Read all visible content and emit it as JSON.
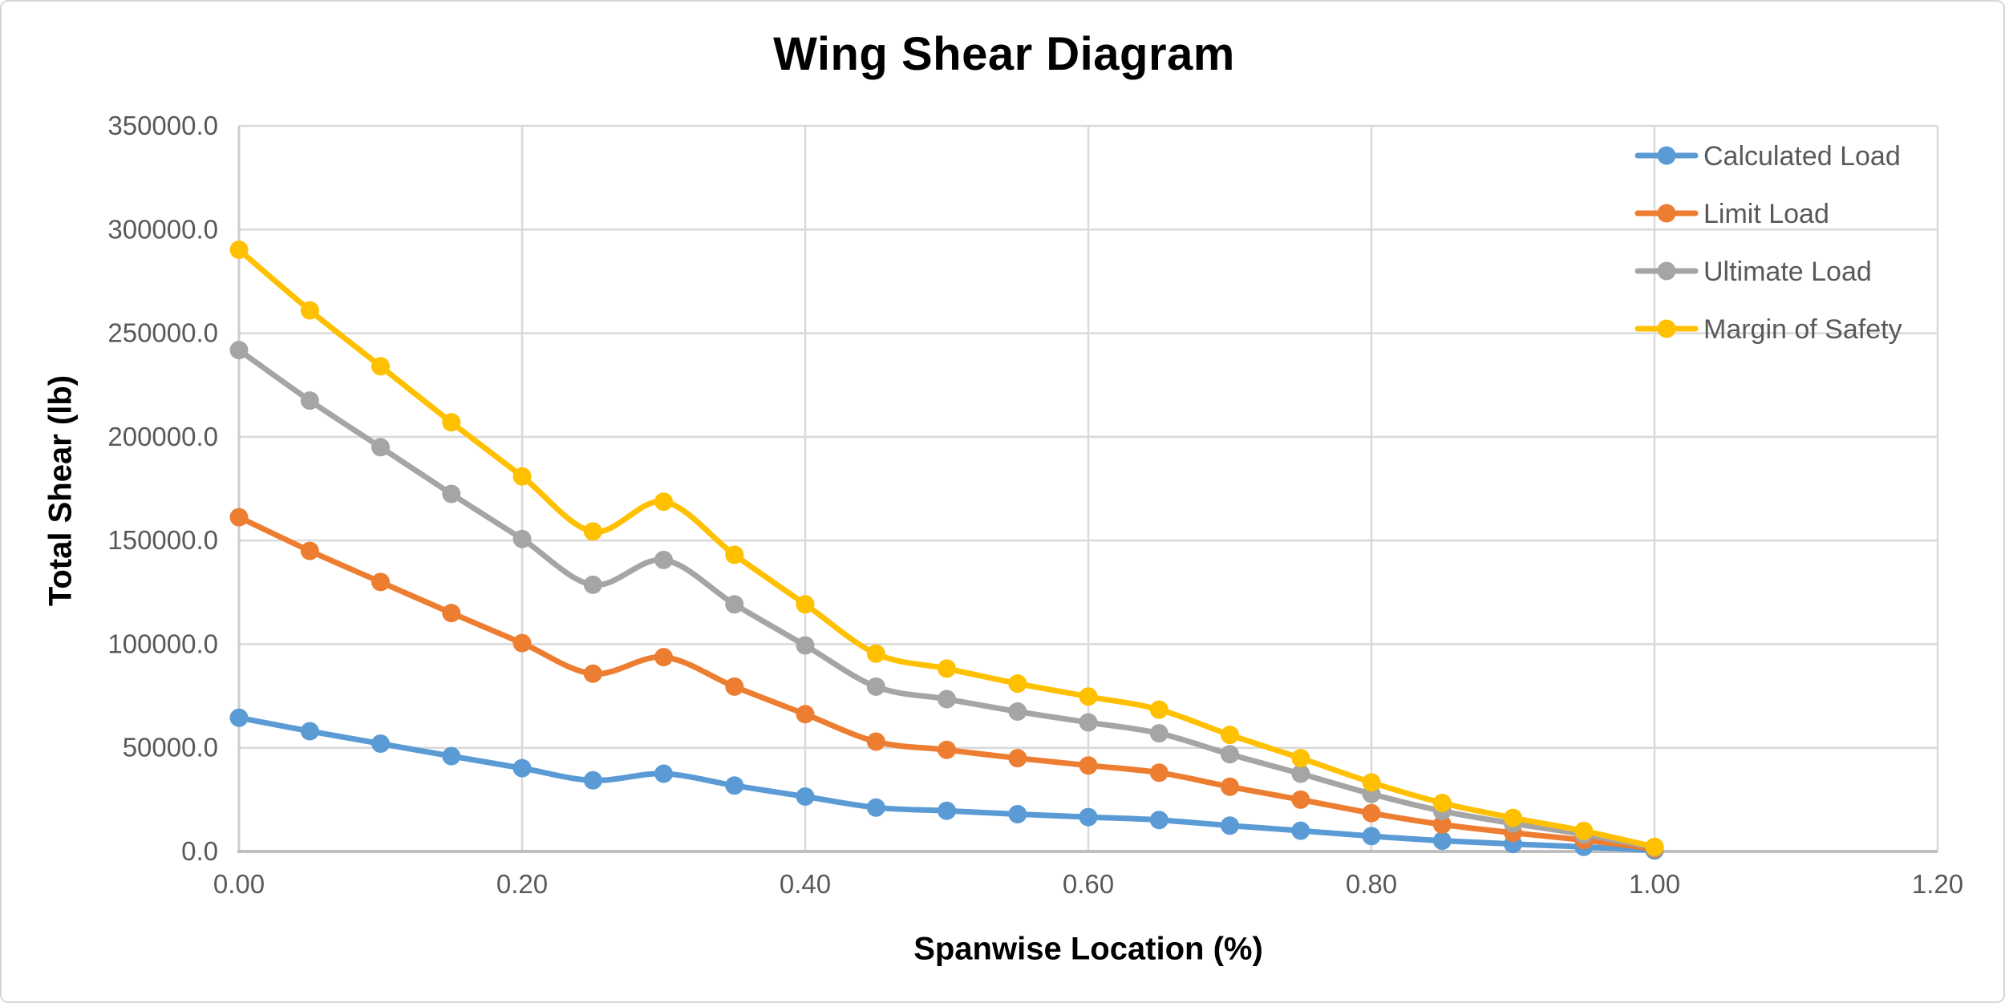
{
  "chart": {
    "title": "Wing Shear Diagram",
    "x_axis_title": "Spanwise Location (%)",
    "y_axis_title": "Total Shear (lb)",
    "x_tick_labels": [
      "0.00",
      "0.20",
      "0.40",
      "0.60",
      "0.80",
      "1.00",
      "1.20"
    ],
    "y_tick_labels": [
      "0.0",
      "50000.0",
      "100000.0",
      "150000.0",
      "200000.0",
      "250000.0",
      "300000.0",
      "350000.0"
    ],
    "grid_color": "#d9d9d9",
    "axis_line_color": "#bfbfbf",
    "tick_text_color": "#595959",
    "title_color": "#000000"
  },
  "chart_data": {
    "type": "line",
    "title": "Wing Shear Diagram",
    "xlabel": "Spanwise Location (%)",
    "ylabel": "Total Shear (lb)",
    "xlim": [
      0,
      1.2
    ],
    "ylim": [
      0,
      350000
    ],
    "x_tick_step": 0.2,
    "y_tick_step": 50000,
    "grid": true,
    "legend_position": "top-right",
    "marker": "circle",
    "smooth_lines": true,
    "x": [
      0.0,
      0.05,
      0.1,
      0.15,
      0.2,
      0.25,
      0.3,
      0.35,
      0.4,
      0.45,
      0.5,
      0.55,
      0.6,
      0.65,
      0.7,
      0.75,
      0.8,
      0.85,
      0.9,
      0.95,
      1.0
    ],
    "series": [
      {
        "name": "Calculated Load",
        "color": "#5B9BD5",
        "values": [
          64500,
          58000,
          52000,
          46000,
          40200,
          34300,
          37500,
          31800,
          26500,
          21200,
          19600,
          18000,
          16600,
          15200,
          12500,
          10000,
          7400,
          5200,
          3600,
          2200,
          500
        ]
      },
      {
        "name": "Limit Load",
        "color": "#ED7D31",
        "values": [
          161250,
          145000,
          130000,
          115000,
          100500,
          85750,
          93750,
          79500,
          66250,
          53000,
          49000,
          45000,
          41500,
          38000,
          31250,
          25000,
          18500,
          13000,
          9000,
          5500,
          1250
        ]
      },
      {
        "name": "Ultimate Load",
        "color": "#A5A5A5",
        "values": [
          241875,
          217500,
          195000,
          172500,
          150750,
          128625,
          140625,
          119250,
          99375,
          79500,
          73500,
          67500,
          62250,
          57000,
          46875,
          37500,
          27750,
          19500,
          13500,
          8250,
          1875
        ]
      },
      {
        "name": "Margin of Safety",
        "color": "#FFC000",
        "values": [
          290250,
          261000,
          234000,
          207000,
          180900,
          154350,
          168750,
          143100,
          119250,
          95400,
          88200,
          81000,
          74700,
          68400,
          56250,
          45000,
          33300,
          23400,
          16200,
          9900,
          2250
        ]
      }
    ]
  }
}
